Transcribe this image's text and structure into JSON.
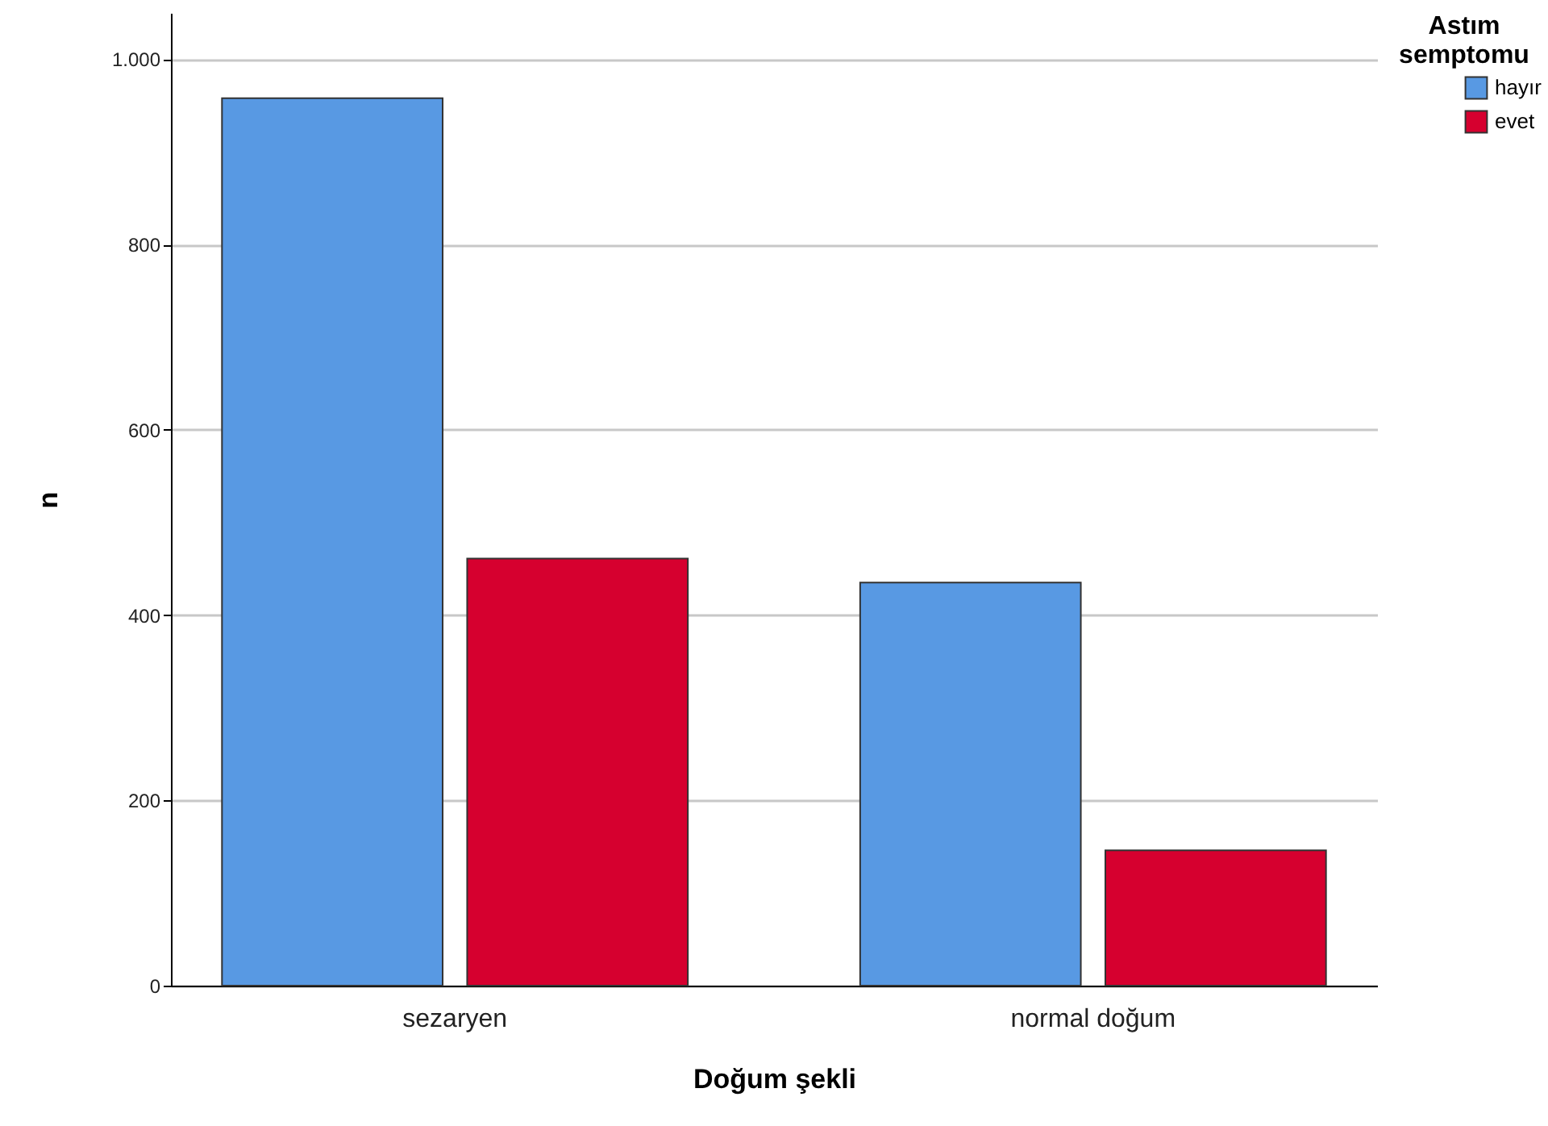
{
  "chart_data": {
    "type": "bar",
    "xlabel": "Doğum şekli",
    "ylabel": "n",
    "legend_title": "Astım semptomu",
    "categories": [
      "sezaryen",
      "normal doğum"
    ],
    "series": [
      {
        "name": "hayır",
        "color": "#5899e3",
        "values": [
          958,
          435
        ]
      },
      {
        "name": "evet",
        "color": "#d6002f",
        "values": [
          461,
          146
        ]
      }
    ],
    "ylim": [
      0,
      1050
    ],
    "yticks": [
      0,
      200,
      400,
      600,
      800,
      {
        "value": 1000,
        "label": "1.000"
      }
    ],
    "grid": "y",
    "legend": "top right"
  }
}
